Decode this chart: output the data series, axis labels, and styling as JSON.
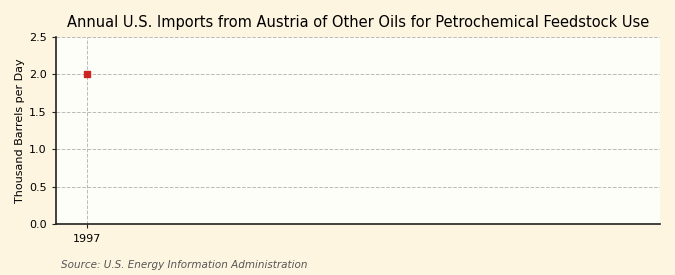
{
  "title": "Annual U.S. Imports from Austria of Other Oils for Petrochemical Feedstock Use",
  "ylabel": "Thousand Barrels per Day",
  "source": "Source: U.S. Energy Information Administration",
  "x_data": [
    1997
  ],
  "y_data": [
    2.0
  ],
  "xlim": [
    1996.3,
    2010
  ],
  "ylim": [
    0.0,
    2.5
  ],
  "yticks": [
    0.0,
    0.5,
    1.0,
    1.5,
    2.0,
    2.5
  ],
  "xticks": [
    1997
  ],
  "marker_color": "#cc2222",
  "marker_size": 4,
  "figure_bg_color": "#fdf5e0",
  "plot_bg_color": "#fefef8",
  "grid_color": "#aaaaaa",
  "spine_color": "#222222",
  "title_fontsize": 10.5,
  "label_fontsize": 8,
  "tick_fontsize": 8,
  "source_fontsize": 7.5
}
